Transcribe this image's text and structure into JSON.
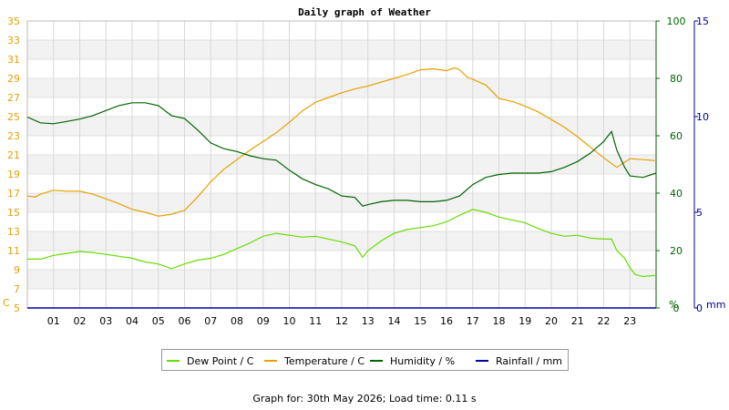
{
  "chart_data": {
    "type": "line",
    "title": "Daily graph of Weather",
    "x_ticks": [
      "01",
      "02",
      "03",
      "04",
      "05",
      "06",
      "07",
      "08",
      "09",
      "10",
      "11",
      "12",
      "13",
      "14",
      "15",
      "16",
      "17",
      "18",
      "19",
      "20",
      "21",
      "22",
      "23"
    ],
    "x_range_hours": [
      0,
      24
    ],
    "y_left": {
      "unit": "C",
      "min": 5,
      "max": 35,
      "ticks": [
        5,
        7,
        9,
        11,
        13,
        15,
        17,
        19,
        21,
        23,
        25,
        27,
        29,
        31,
        33,
        35
      ],
      "color": "#e6a000"
    },
    "y_right_1": {
      "unit": "%",
      "min": 0,
      "max": 100,
      "ticks": [
        0,
        20,
        40,
        60,
        80,
        100
      ],
      "color": "#006400"
    },
    "y_right_2": {
      "unit": "mm",
      "min": 0,
      "max": 15,
      "ticks": [
        0,
        5,
        10,
        15
      ],
      "color": "#00008b"
    },
    "grid": true,
    "legend_position": "bottom",
    "series": [
      {
        "name": "Dew Point / C",
        "axis": "left",
        "color": "#66dd00",
        "points": [
          [
            0,
            10.1
          ],
          [
            0.5,
            10.1
          ],
          [
            1,
            10.5
          ],
          [
            1.5,
            10.7
          ],
          [
            2,
            10.9
          ],
          [
            2.5,
            10.8
          ],
          [
            3,
            10.6
          ],
          [
            3.5,
            10.4
          ],
          [
            4,
            10.2
          ],
          [
            4.5,
            9.8
          ],
          [
            5,
            9.6
          ],
          [
            5.5,
            9.1
          ],
          [
            6,
            9.6
          ],
          [
            6.5,
            10.0
          ],
          [
            7,
            10.2
          ],
          [
            7.5,
            10.6
          ],
          [
            8,
            11.2
          ],
          [
            8.5,
            11.8
          ],
          [
            9,
            12.5
          ],
          [
            9.5,
            12.8
          ],
          [
            10,
            12.6
          ],
          [
            10.5,
            12.4
          ],
          [
            11,
            12.5
          ],
          [
            11.5,
            12.2
          ],
          [
            12,
            11.9
          ],
          [
            12.5,
            11.5
          ],
          [
            12.8,
            10.3
          ],
          [
            13,
            11.0
          ],
          [
            13.5,
            12.0
          ],
          [
            14,
            12.8
          ],
          [
            14.5,
            13.2
          ],
          [
            15,
            13.4
          ],
          [
            15.5,
            13.6
          ],
          [
            16,
            14.0
          ],
          [
            16.5,
            14.7
          ],
          [
            17,
            15.3
          ],
          [
            17.5,
            15.0
          ],
          [
            18,
            14.5
          ],
          [
            18.5,
            14.2
          ],
          [
            19,
            13.9
          ],
          [
            19.5,
            13.3
          ],
          [
            20,
            12.8
          ],
          [
            20.5,
            12.5
          ],
          [
            21,
            12.6
          ],
          [
            21.5,
            12.3
          ],
          [
            22,
            12.2
          ],
          [
            22.3,
            12.2
          ],
          [
            22.5,
            11.0
          ],
          [
            22.8,
            10.2
          ],
          [
            23,
            9.2
          ],
          [
            23.2,
            8.5
          ],
          [
            23.5,
            8.3
          ],
          [
            24,
            8.4
          ]
        ]
      },
      {
        "name": "Temperature / C",
        "axis": "left",
        "color": "#e6a000",
        "points": [
          [
            0,
            16.7
          ],
          [
            0.3,
            16.6
          ],
          [
            0.5,
            16.9
          ],
          [
            1,
            17.3
          ],
          [
            1.5,
            17.2
          ],
          [
            2,
            17.2
          ],
          [
            2.5,
            16.9
          ],
          [
            3,
            16.4
          ],
          [
            3.5,
            15.9
          ],
          [
            4,
            15.3
          ],
          [
            4.5,
            15.0
          ],
          [
            5,
            14.6
          ],
          [
            5.5,
            14.8
          ],
          [
            6,
            15.2
          ],
          [
            6.5,
            16.6
          ],
          [
            7,
            18.2
          ],
          [
            7.5,
            19.5
          ],
          [
            8,
            20.5
          ],
          [
            8.5,
            21.5
          ],
          [
            9,
            22.4
          ],
          [
            9.5,
            23.3
          ],
          [
            10,
            24.4
          ],
          [
            10.5,
            25.6
          ],
          [
            11,
            26.5
          ],
          [
            11.5,
            27.0
          ],
          [
            12,
            27.5
          ],
          [
            12.5,
            27.9
          ],
          [
            13,
            28.2
          ],
          [
            13.5,
            28.6
          ],
          [
            14,
            29.0
          ],
          [
            14.5,
            29.4
          ],
          [
            15,
            29.9
          ],
          [
            15.5,
            30.0
          ],
          [
            16,
            29.8
          ],
          [
            16.3,
            30.1
          ],
          [
            16.5,
            29.9
          ],
          [
            16.8,
            29.1
          ],
          [
            17,
            28.9
          ],
          [
            17.5,
            28.3
          ],
          [
            18,
            26.9
          ],
          [
            18.5,
            26.6
          ],
          [
            19,
            26.1
          ],
          [
            19.5,
            25.5
          ],
          [
            20,
            24.7
          ],
          [
            20.5,
            23.9
          ],
          [
            21,
            22.9
          ],
          [
            21.5,
            21.8
          ],
          [
            22,
            20.7
          ],
          [
            22.5,
            19.7
          ],
          [
            23,
            20.6
          ],
          [
            23.5,
            20.5
          ],
          [
            24,
            20.4
          ]
        ]
      },
      {
        "name": "Humidity / %",
        "axis": "right_1",
        "color": "#006400",
        "points": [
          [
            0,
            66.5
          ],
          [
            0.5,
            64.5
          ],
          [
            1,
            64.2
          ],
          [
            1.5,
            65.0
          ],
          [
            2,
            65.8
          ],
          [
            2.5,
            67.0
          ],
          [
            3,
            68.8
          ],
          [
            3.5,
            70.5
          ],
          [
            4,
            71.5
          ],
          [
            4.5,
            71.5
          ],
          [
            5,
            70.5
          ],
          [
            5.5,
            67.0
          ],
          [
            6,
            66.0
          ],
          [
            6.5,
            62.0
          ],
          [
            7,
            57.5
          ],
          [
            7.5,
            55.5
          ],
          [
            8,
            54.5
          ],
          [
            8.5,
            53.0
          ],
          [
            9,
            52.0
          ],
          [
            9.5,
            51.5
          ],
          [
            10,
            48.0
          ],
          [
            10.5,
            45.0
          ],
          [
            11,
            43.0
          ],
          [
            11.5,
            41.5
          ],
          [
            12,
            39.0
          ],
          [
            12.5,
            38.5
          ],
          [
            12.8,
            35.5
          ],
          [
            13,
            36.0
          ],
          [
            13.5,
            37.0
          ],
          [
            14,
            37.5
          ],
          [
            14.5,
            37.5
          ],
          [
            15,
            37.0
          ],
          [
            15.5,
            37.0
          ],
          [
            16,
            37.5
          ],
          [
            16.5,
            39.0
          ],
          [
            17,
            43.0
          ],
          [
            17.5,
            45.5
          ],
          [
            18,
            46.5
          ],
          [
            18.5,
            47.0
          ],
          [
            19,
            47.0
          ],
          [
            19.5,
            47.0
          ],
          [
            20,
            47.5
          ],
          [
            20.5,
            49.0
          ],
          [
            21,
            51.0
          ],
          [
            21.5,
            54.0
          ],
          [
            22,
            58.0
          ],
          [
            22.3,
            61.5
          ],
          [
            22.5,
            55.0
          ],
          [
            22.8,
            49.0
          ],
          [
            23,
            46.0
          ],
          [
            23.5,
            45.5
          ],
          [
            24,
            47.0
          ]
        ]
      },
      {
        "name": "Rainfall / mm",
        "axis": "right_2",
        "color": "#0000aa",
        "points": [
          [
            0,
            0
          ],
          [
            24,
            0
          ]
        ]
      }
    ]
  },
  "legend": [
    {
      "label": "Dew Point / C",
      "color": "#66dd00"
    },
    {
      "label": "Temperature / C",
      "color": "#e6a000"
    },
    {
      "label": "Humidity / %",
      "color": "#006400"
    },
    {
      "label": "Rainfall / mm",
      "color": "#0000aa"
    }
  ],
  "footer": "Graph for: 30th May 2026; Load time: 0.11 s"
}
